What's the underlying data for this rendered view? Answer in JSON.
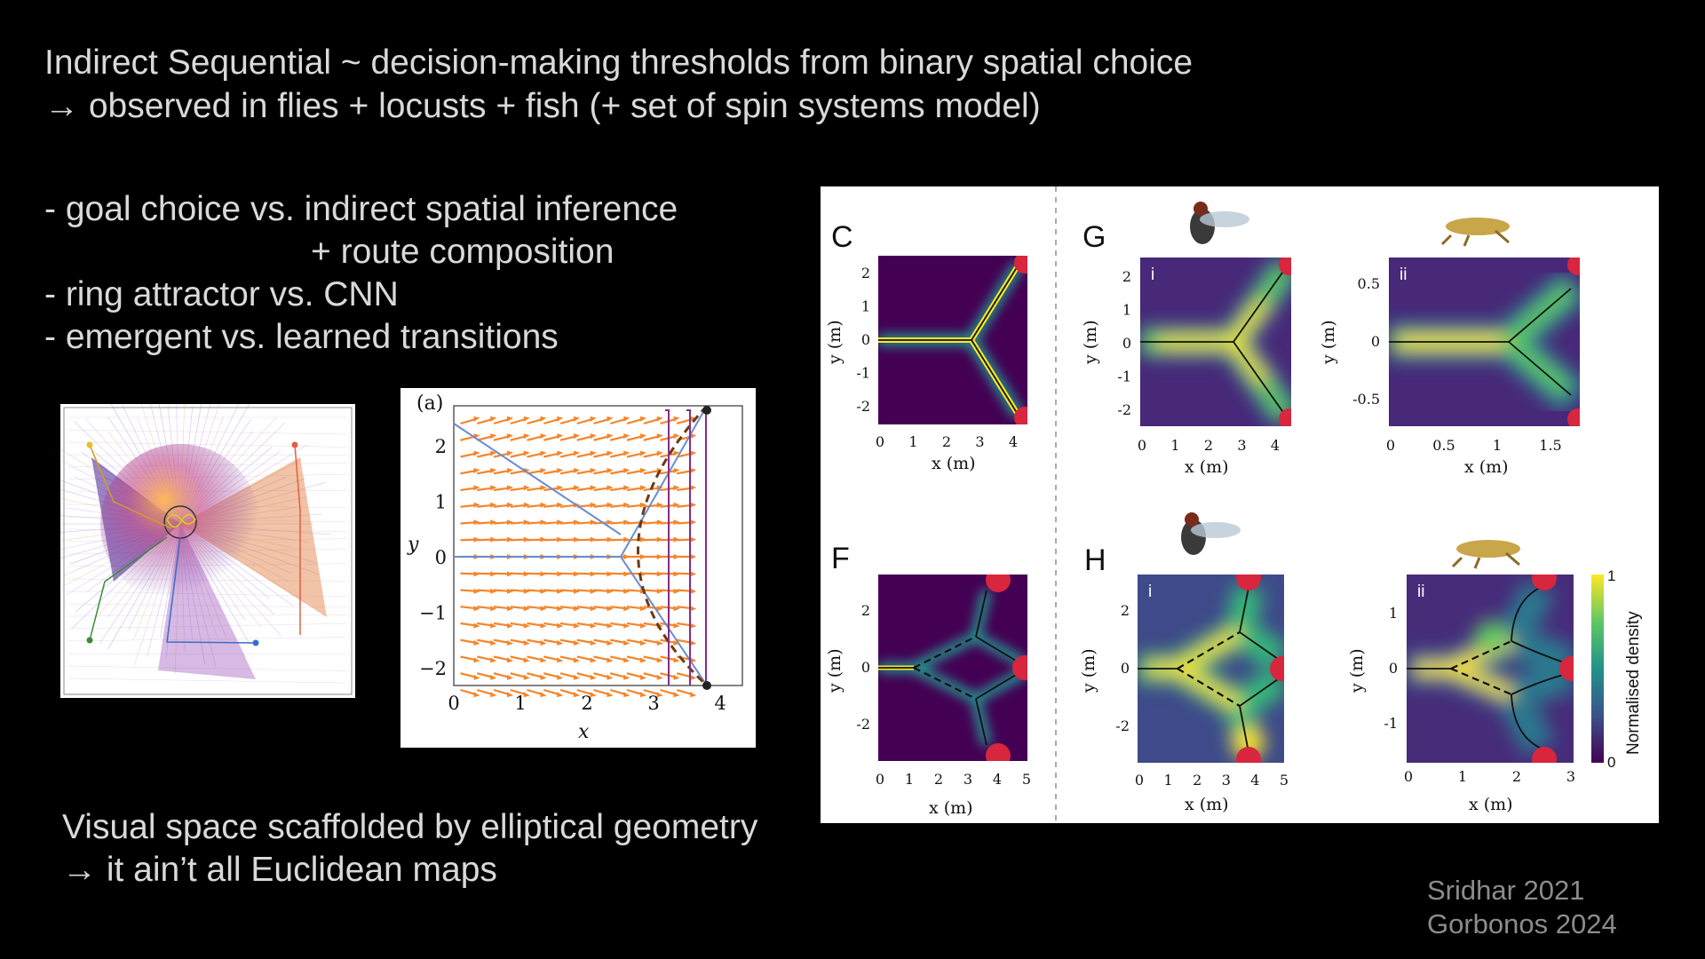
{
  "slide": {
    "title_line1": "Indirect Sequential ~ decision-making thresholds from binary spatial choice",
    "title_line2": "→ observed in flies + locusts + fish (+ set of spin systems model)",
    "bullets": [
      "- goal choice vs. indirect spatial inference",
      "+ route composition",
      "- ring attractor vs. CNN",
      "- emergent vs. learned transitions"
    ],
    "bottom_line1": "Visual space scaffolded by elliptical geometry",
    "bottom_line2": "→ it ain’t all Euclidean maps",
    "refs": [
      "Sridhar 2021",
      "Gorbonos 2024"
    ]
  },
  "figure_mid": {
    "panel_label": "(a)",
    "xlabel": "x",
    "ylabel": "y",
    "xticks": [
      "0",
      "1",
      "2",
      "3",
      "4"
    ],
    "yticks": [
      "2",
      "1",
      "0",
      "−1",
      "−2"
    ]
  },
  "figure_right": {
    "panels": {
      "C": {
        "label": "C",
        "xticks": [
          "0",
          "1",
          "2",
          "3",
          "4"
        ],
        "yticks": [
          "2",
          "1",
          "0",
          "-1",
          "-2"
        ],
        "xlabel": "x (m)",
        "ylabel": "y (m)"
      },
      "G": {
        "label": "G"
      },
      "Gi": {
        "sub": "i",
        "xticks": [
          "0",
          "1",
          "2",
          "3",
          "4"
        ],
        "yticks": [
          "2",
          "1",
          "0",
          "-1",
          "-2"
        ],
        "xlabel": "x (m)",
        "ylabel": "y (m)"
      },
      "Gii": {
        "sub": "ii",
        "xticks": [
          "0",
          "0.5",
          "1",
          "1.5"
        ],
        "yticks": [
          "0.5",
          "0",
          "-0.5"
        ],
        "xlabel": "x (m)",
        "ylabel": "y (m)"
      },
      "F": {
        "label": "F",
        "xticks": [
          "0",
          "1",
          "2",
          "3",
          "4",
          "5"
        ],
        "yticks": [
          "2",
          "0",
          "-2"
        ],
        "xlabel": "x (m)",
        "ylabel": "y (m)"
      },
      "H": {
        "label": "H"
      },
      "Hi": {
        "sub": "i",
        "xticks": [
          "0",
          "1",
          "2",
          "3",
          "4",
          "5"
        ],
        "yticks": [
          "2",
          "0",
          "-2"
        ],
        "xlabel": "x (m)",
        "ylabel": "y (m)"
      },
      "Hii": {
        "sub": "ii",
        "xticks": [
          "0",
          "1",
          "2",
          "3"
        ],
        "yticks": [
          "1",
          "0",
          "-1"
        ],
        "xlabel": "x (m)",
        "ylabel": "y (m)"
      }
    },
    "colorbar": {
      "label": "Normalised density",
      "max": "1",
      "min": "0"
    }
  }
}
